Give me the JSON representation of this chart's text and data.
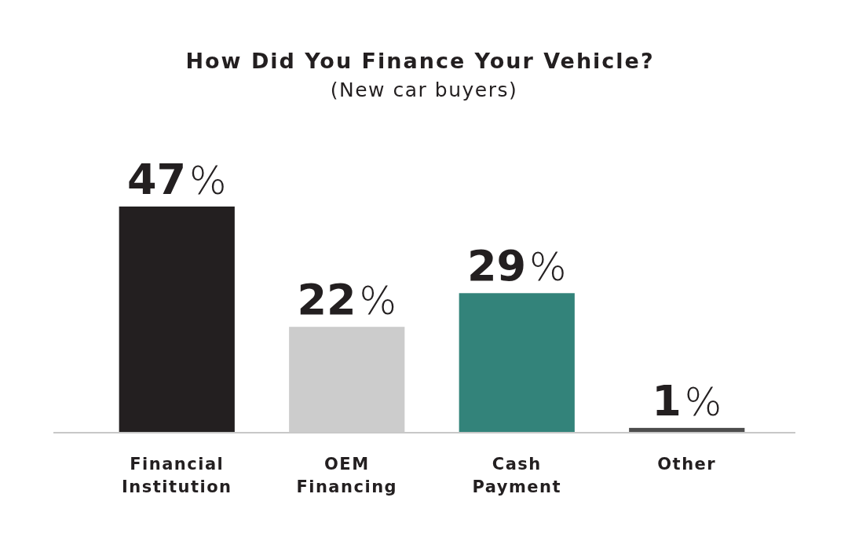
{
  "chart_data": {
    "type": "bar",
    "title": "How Did You Finance Your Vehicle?",
    "subtitle": "(New car buyers)",
    "categories": [
      "Financial Institution",
      "OEM Financing",
      "Cash Payment",
      "Other"
    ],
    "values": [
      47,
      22,
      29,
      1
    ],
    "colors": [
      "#231f20",
      "#cccccc",
      "#33837a",
      "#4d4d4d"
    ],
    "value_labels": [
      "47%",
      "22%",
      "29%",
      "1%"
    ]
  }
}
